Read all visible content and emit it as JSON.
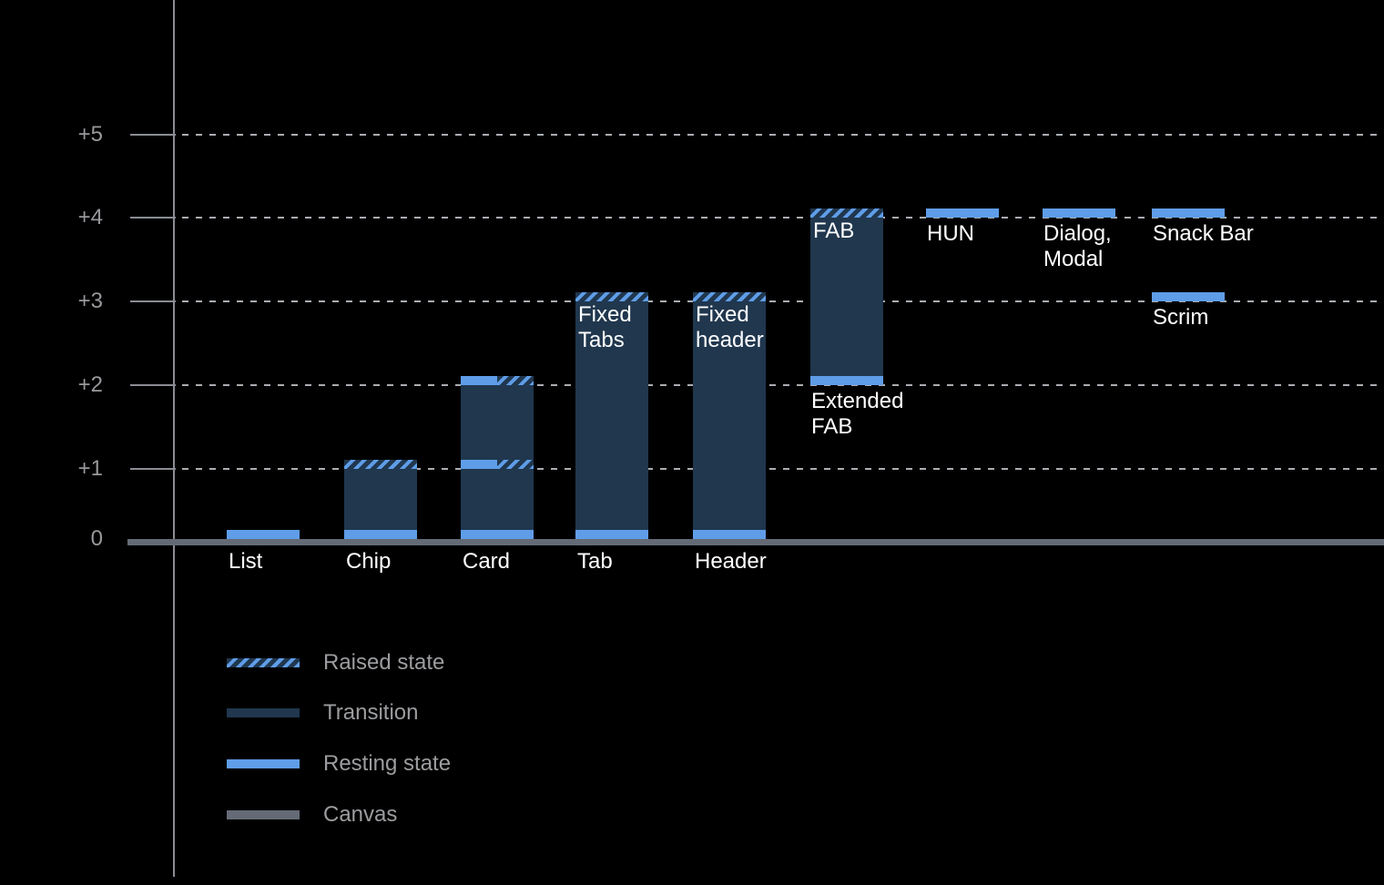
{
  "chart_data": {
    "type": "bar",
    "title": "",
    "background": "#000000",
    "y_axis": {
      "range": [
        0,
        5
      ],
      "gridlines": "dotted",
      "ticks": [
        {
          "value": 5,
          "label": "+5"
        },
        {
          "value": 4,
          "label": "+4"
        },
        {
          "value": 3,
          "label": "+3"
        },
        {
          "value": 2,
          "label": "+2"
        },
        {
          "value": 1,
          "label": "+1"
        },
        {
          "value": 0,
          "label": "0"
        }
      ]
    },
    "bars": [
      {
        "name": "list",
        "col": 0,
        "axis_label": "List",
        "segments": [
          {
            "type": "resting",
            "at": 0
          }
        ]
      },
      {
        "name": "chip",
        "col": 1,
        "axis_label": "Chip",
        "segments": [
          {
            "type": "raised",
            "at": 1
          },
          {
            "type": "transition",
            "from": 0,
            "to": 1
          },
          {
            "type": "resting",
            "at": 0
          }
        ]
      },
      {
        "name": "card",
        "col": 2,
        "axis_label": "Card",
        "segments": [
          {
            "type": "split",
            "at": 2
          },
          {
            "type": "transition",
            "from": 1,
            "to": 2
          },
          {
            "type": "split",
            "at": 1
          },
          {
            "type": "transition",
            "from": 0,
            "to": 1
          },
          {
            "type": "resting",
            "at": 0
          }
        ]
      },
      {
        "name": "tab",
        "col": 3,
        "axis_label": "Tab",
        "inner_label": "Fixed\nTabs",
        "segments": [
          {
            "type": "raised",
            "at": 3
          },
          {
            "type": "transition",
            "from": 0,
            "to": 3
          },
          {
            "type": "resting",
            "at": 0
          }
        ]
      },
      {
        "name": "header",
        "col": 4,
        "axis_label": "Header",
        "inner_label": "Fixed\nheader",
        "segments": [
          {
            "type": "raised",
            "at": 3
          },
          {
            "type": "transition",
            "from": 0,
            "to": 3
          },
          {
            "type": "resting",
            "at": 0
          }
        ]
      },
      {
        "name": "fab",
        "col": 5,
        "inner_label": "FAB",
        "below_label": "Extended\nFAB",
        "below_at": 2,
        "segments": [
          {
            "type": "raised",
            "at": 4
          },
          {
            "type": "transition",
            "from": 2,
            "to": 4
          },
          {
            "type": "resting",
            "at": 2
          }
        ]
      },
      {
        "name": "hun",
        "col": 6,
        "below_label": "HUN",
        "below_at": 4,
        "segments": [
          {
            "type": "resting",
            "at": 4
          }
        ]
      },
      {
        "name": "dialog-modal",
        "col": 7,
        "below_label": "Dialog,\nModal",
        "below_at": 4,
        "segments": [
          {
            "type": "resting",
            "at": 4
          }
        ]
      },
      {
        "name": "snack-bar",
        "col": 8,
        "below_label": "Snack Bar",
        "below_at": 4,
        "segments": [
          {
            "type": "resting",
            "at": 4
          }
        ]
      },
      {
        "name": "scrim",
        "col": 8,
        "below_label": "Scrim",
        "below_at": 3,
        "segments": [
          {
            "type": "resting",
            "at": 3
          }
        ]
      }
    ],
    "legend": {
      "position": "bottom-left",
      "items": [
        {
          "key": "raised",
          "label": "Raised state"
        },
        {
          "key": "transition",
          "label": "Transition"
        },
        {
          "key": "resting",
          "label": "Resting state"
        },
        {
          "key": "canvas",
          "label": "Canvas"
        }
      ]
    },
    "colors": {
      "resting": "#5f9de8",
      "transition": "#20374e",
      "canvas": "#656b76",
      "raised_stripe": "#5f9de8",
      "axis": "#8a8d93",
      "gridline": "#aaadb2",
      "tick_text": "#98999c",
      "legend_text": "#9c9da0",
      "bar_text": "#ffffff",
      "background": "#000000"
    }
  }
}
